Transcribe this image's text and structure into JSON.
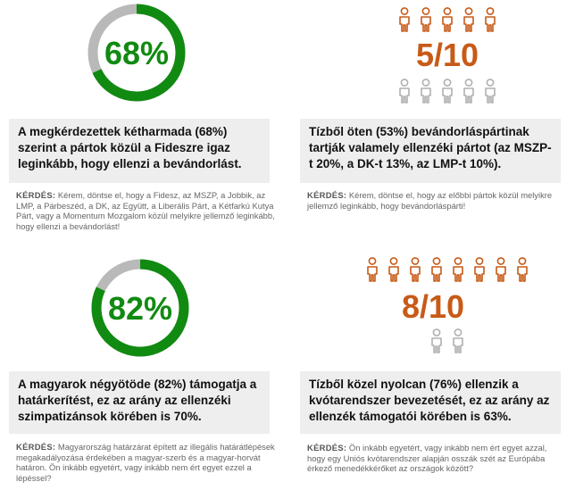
{
  "colors": {
    "green": "#118a11",
    "gray_ring": "#b9b9b9",
    "orange": "#c85a17",
    "gray_person": "#b0b0b0"
  },
  "panels": [
    {
      "kind": "donut",
      "percent_label": "68%",
      "statement": "A megkérdezettek kétharmada (68%) szerint a pártok közül a Fideszre igaz leginkább, hogy ellenzi a bevándorlást.",
      "question_label": "KÉRDÉS:",
      "question": "Kérem, döntse el, hogy a Fidesz, az MSZP, a Jobbik, az LMP, a Párbeszéd, a DK, az Együtt, a Liberális Párt, a Kétfarkú Kutya Párt, vagy a Momentum Mozgalom közül melyikre jellemző leginkább, hogy ellenzi a bevándorlást!"
    },
    {
      "kind": "people",
      "icon": "person-icon",
      "fraction_label": "5/10",
      "statement": "Tízből öten (53%) bevándorláspártinak tartják valamely ellenzéki pártot (az MSZP-t 20%, a DK-t 13%, az LMP-t 10%).",
      "question_label": "KÉRDÉS:",
      "question": "Kérem, döntse el, hogy az előbbi pártok közül melyikre jellemző leginkább, hogy bevándorláspárti!"
    },
    {
      "kind": "donut",
      "percent_label": "82%",
      "statement": "A magyarok négyötöde (82%) támogatja a határkerítést, ez az arány az ellenzéki szimpatizánsok körében is 70%.",
      "question_label": "KÉRDÉS:",
      "question": "Magyarország határzárat épített az illegális határátlépések megakadályozása érdekében a magyar-szerb és a magyar-horvát határon. Ön inkább egyetért, vagy inkább nem ért egyet ezzel a lépéssel?"
    },
    {
      "kind": "people",
      "icon": "person-icon",
      "fraction_label": "8/10",
      "statement": "Tízből közel nyolcan (76%) ellenzik a kvótarendszer bevezetését, ez az arány az ellenzék támogatói körében is 63%.",
      "question_label": "KÉRDÉS:",
      "question": "Ön inkább egyetért, vagy inkább nem ért egyet azzal, hogy egy Uniós kvótarendszer alapján osszák szét az Európába érkező menedékkérőket az országok között?"
    }
  ],
  "chart_data": [
    {
      "type": "pie",
      "values": [
        68,
        32
      ],
      "categories": [
        "68%",
        ""
      ]
    },
    {
      "type": "bar",
      "values": [
        5,
        5
      ],
      "categories": [
        "5/10",
        ""
      ]
    },
    {
      "type": "pie",
      "values": [
        82,
        18
      ],
      "categories": [
        "82%",
        ""
      ]
    },
    {
      "type": "bar",
      "values": [
        8,
        2
      ],
      "categories": [
        "8/10",
        ""
      ]
    }
  ]
}
